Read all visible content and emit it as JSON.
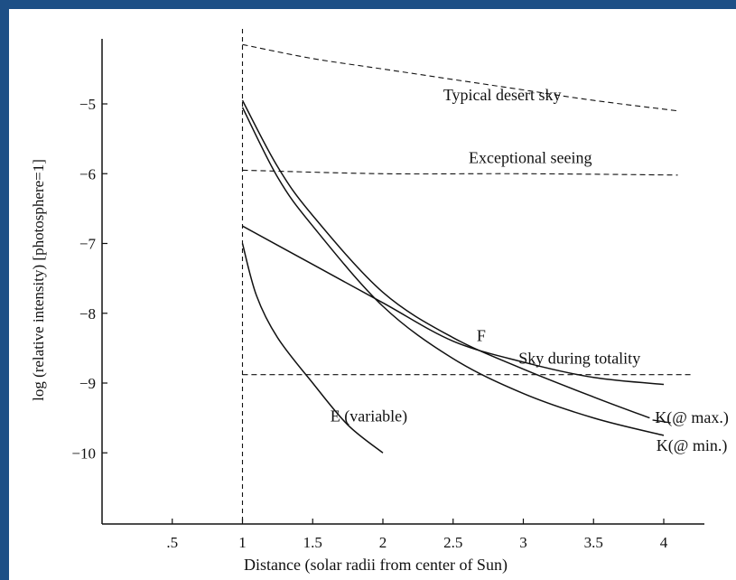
{
  "colors": {
    "page_border": "#1d4f86",
    "plot_background": "#ffffff",
    "ink": "#111111"
  },
  "chart_data": {
    "type": "line",
    "title": "",
    "xlabel": "Distance (solar radii from center of Sun)",
    "ylabel": "log (relative intensity) [photosphere=1]",
    "xlim": [
      0,
      4.3
    ],
    "ylim": [
      -11.0,
      -4.1
    ],
    "x_ticks": [
      0.5,
      1,
      1.5,
      2,
      2.5,
      3,
      3.5,
      4
    ],
    "x_tick_labels": [
      ".5",
      "1",
      "1.5",
      "2",
      "2.5",
      "3",
      "3.5",
      "4"
    ],
    "y_ticks": [
      -5,
      -6,
      -7,
      -8,
      -9,
      -10
    ],
    "y_tick_labels": [
      "−5",
      "−6",
      "−7",
      "−8",
      "−9",
      "−10"
    ],
    "grid": false,
    "legend": "none (series labelled directly on curves)",
    "reference_line": {
      "x": 1,
      "style": "dashed"
    },
    "series": [
      {
        "name": "Typical desert sky",
        "style": "dashed",
        "x": [
          1,
          1.5,
          2,
          2.5,
          3,
          3.5,
          4.1
        ],
        "y": [
          -4.15,
          -4.35,
          -4.5,
          -4.65,
          -4.8,
          -4.95,
          -5.1
        ]
      },
      {
        "name": "Exceptional seeing",
        "style": "dashed",
        "x": [
          1,
          2,
          3,
          4.1
        ],
        "y": [
          -5.95,
          -6.0,
          -6.0,
          -6.02
        ]
      },
      {
        "name": "Sky during totality",
        "style": "dashed",
        "x": [
          1,
          2,
          3,
          4.2
        ],
        "y": [
          -8.88,
          -8.88,
          -8.88,
          -8.88
        ]
      },
      {
        "name": "F",
        "style": "solid",
        "x": [
          1,
          1.5,
          2,
          2.5,
          3,
          3.5,
          4
        ],
        "y": [
          -6.75,
          -7.3,
          -7.85,
          -8.4,
          -8.7,
          -8.92,
          -9.02
        ]
      },
      {
        "name": "K(@ max.)",
        "style": "solid",
        "x": [
          1,
          1.25,
          1.5,
          2,
          2.5,
          3,
          3.5,
          3.9
        ],
        "y": [
          -4.95,
          -5.9,
          -6.6,
          -7.7,
          -8.35,
          -8.8,
          -9.2,
          -9.5
        ]
      },
      {
        "name": "K(@ min.)",
        "style": "solid",
        "x": [
          1,
          1.25,
          1.5,
          2,
          2.5,
          3,
          3.5,
          4
        ],
        "y": [
          -5.05,
          -6.05,
          -6.75,
          -7.9,
          -8.65,
          -9.15,
          -9.5,
          -9.75
        ]
      },
      {
        "name": "E (variable)",
        "style": "solid",
        "x": [
          1,
          1.1,
          1.25,
          1.5,
          1.75,
          2
        ],
        "y": [
          -7.0,
          -7.75,
          -8.35,
          -9.0,
          -9.6,
          -10.0
        ]
      }
    ],
    "annotations": [
      {
        "text": "Typical desert sky",
        "x": 2.85,
        "y": -4.95
      },
      {
        "text": "Exceptional seeing",
        "x": 3.05,
        "y": -5.85
      },
      {
        "text": "F",
        "x": 2.7,
        "y": -8.4
      },
      {
        "text": "Sky during totality",
        "x": 3.4,
        "y": -8.72
      },
      {
        "text": "E (variable)",
        "x": 1.9,
        "y": -9.55
      },
      {
        "text": "K(@ max.)",
        "x": 4.2,
        "y": -9.57
      },
      {
        "text": "K(@ min.)",
        "x": 4.2,
        "y": -9.97
      }
    ]
  }
}
